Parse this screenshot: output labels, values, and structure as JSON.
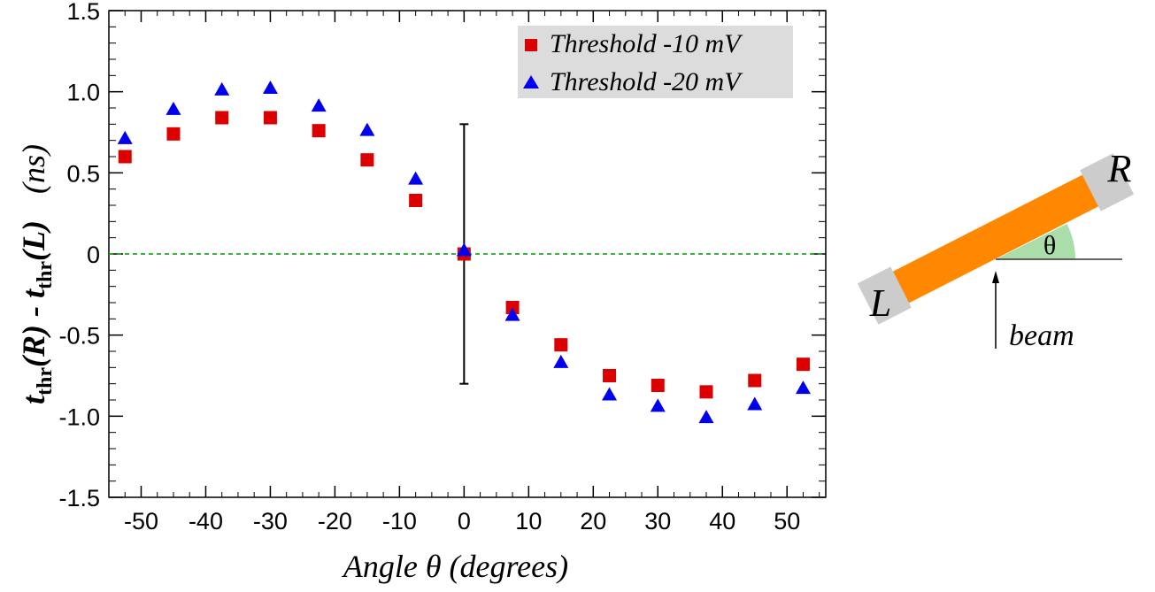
{
  "chart_data": {
    "type": "scatter",
    "title": "",
    "xlabel": "Angle θ (degrees)",
    "ylabel_parts": {
      "t": "t",
      "sub": "thr",
      "R": "(R) - ",
      "L": "(L)",
      "unit": "(ns)"
    },
    "xlim": [
      -55,
      56
    ],
    "ylim": [
      -1.5,
      1.5
    ],
    "xticks": [
      -50,
      -40,
      -30,
      -20,
      -10,
      0,
      10,
      20,
      30,
      40,
      50
    ],
    "xtick_labels": [
      "-50",
      "-40",
      "-30",
      "-20",
      "-10",
      "0",
      "10",
      "20",
      "30",
      "40",
      "50"
    ],
    "yticks": [
      1.5,
      1.0,
      0.5,
      0,
      -0.5,
      -1.0,
      -1.5
    ],
    "ytick_labels": [
      "1.5",
      "1.0",
      "0.5",
      "0",
      "-0.5",
      "-1.0",
      "-1.5"
    ],
    "x_minor_step": 2.5,
    "y_minor_step": 0.1,
    "reference_line": {
      "y": 0,
      "style": "dashed",
      "color": "#22aa22"
    },
    "error_bar": {
      "x": 0,
      "y": 0,
      "low": -0.8,
      "high": 0.8
    },
    "legend_position": "top-right",
    "series": [
      {
        "name": "Threshold -10 mV",
        "marker": "square",
        "color": "#dd0000",
        "points": [
          [
            -52.5,
            0.6
          ],
          [
            -45,
            0.74
          ],
          [
            -37.5,
            0.84
          ],
          [
            -30,
            0.84
          ],
          [
            -22.5,
            0.76
          ],
          [
            -15,
            0.58
          ],
          [
            -7.5,
            0.33
          ],
          [
            0,
            0.0
          ],
          [
            7.5,
            -0.33
          ],
          [
            15,
            -0.56
          ],
          [
            22.5,
            -0.75
          ],
          [
            30,
            -0.81
          ],
          [
            37.5,
            -0.85
          ],
          [
            45,
            -0.78
          ],
          [
            52.5,
            -0.68
          ]
        ]
      },
      {
        "name": "Threshold -20 mV",
        "marker": "triangle",
        "color": "#0000ee",
        "points": [
          [
            -52.5,
            0.71
          ],
          [
            -45,
            0.89
          ],
          [
            -37.5,
            1.01
          ],
          [
            -30,
            1.02
          ],
          [
            -22.5,
            0.91
          ],
          [
            -15,
            0.76
          ],
          [
            -7.5,
            0.46
          ],
          [
            0,
            0.02
          ],
          [
            7.5,
            -0.38
          ],
          [
            15,
            -0.67
          ],
          [
            22.5,
            -0.87
          ],
          [
            30,
            -0.94
          ],
          [
            37.5,
            -1.01
          ],
          [
            45,
            -0.93
          ],
          [
            52.5,
            -0.83
          ]
        ]
      }
    ]
  },
  "diagram": {
    "left_label": "L",
    "right_label": "R",
    "angle_label": "θ",
    "beam_label": "beam",
    "bar_color": "#ff8800",
    "end_color": "#cccccc",
    "angle_wedge_color": "#aaddaa"
  }
}
